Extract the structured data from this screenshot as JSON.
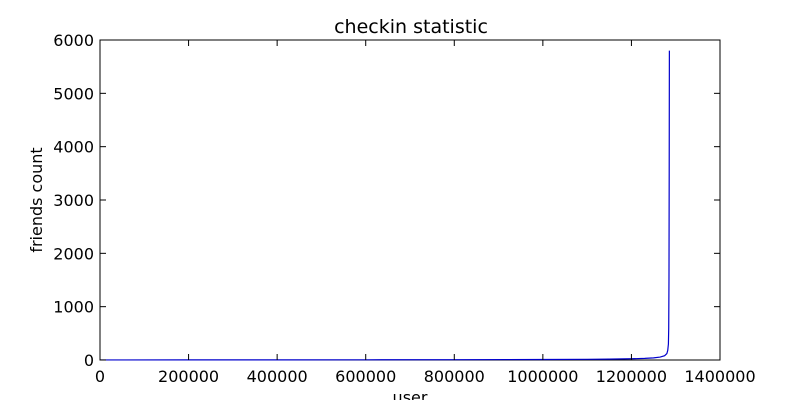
{
  "chart_data": {
    "type": "line",
    "title": "checkin statistic",
    "xlabel": "user",
    "ylabel": "friends count",
    "xlim": [
      0,
      1400000
    ],
    "ylim": [
      0,
      6000
    ],
    "xticks": [
      0,
      200000,
      400000,
      600000,
      800000,
      1000000,
      1200000,
      1400000
    ],
    "xtick_labels": [
      "0",
      "200000",
      "400000",
      "600000",
      "800000",
      "1000000",
      "1200000",
      "1400000"
    ],
    "yticks": [
      0,
      1000,
      2000,
      3000,
      4000,
      5000,
      6000
    ],
    "ytick_labels": [
      "0",
      "1000",
      "2000",
      "3000",
      "4000",
      "5000",
      "6000"
    ],
    "grid": false,
    "series": [
      {
        "color": "#0000cc",
        "x": [
          0,
          200000,
          400000,
          600000,
          800000,
          1000000,
          1100000,
          1150000,
          1200000,
          1230000,
          1250000,
          1265000,
          1275000,
          1280000,
          1282000,
          1283500,
          1284200,
          1284800,
          1285300,
          1285700
        ],
        "y": [
          1,
          2,
          3,
          4,
          6,
          9,
          13,
          17,
          23,
          30,
          40,
          55,
          80,
          120,
          180,
          300,
          600,
          1500,
          3500,
          5800
        ]
      }
    ]
  }
}
